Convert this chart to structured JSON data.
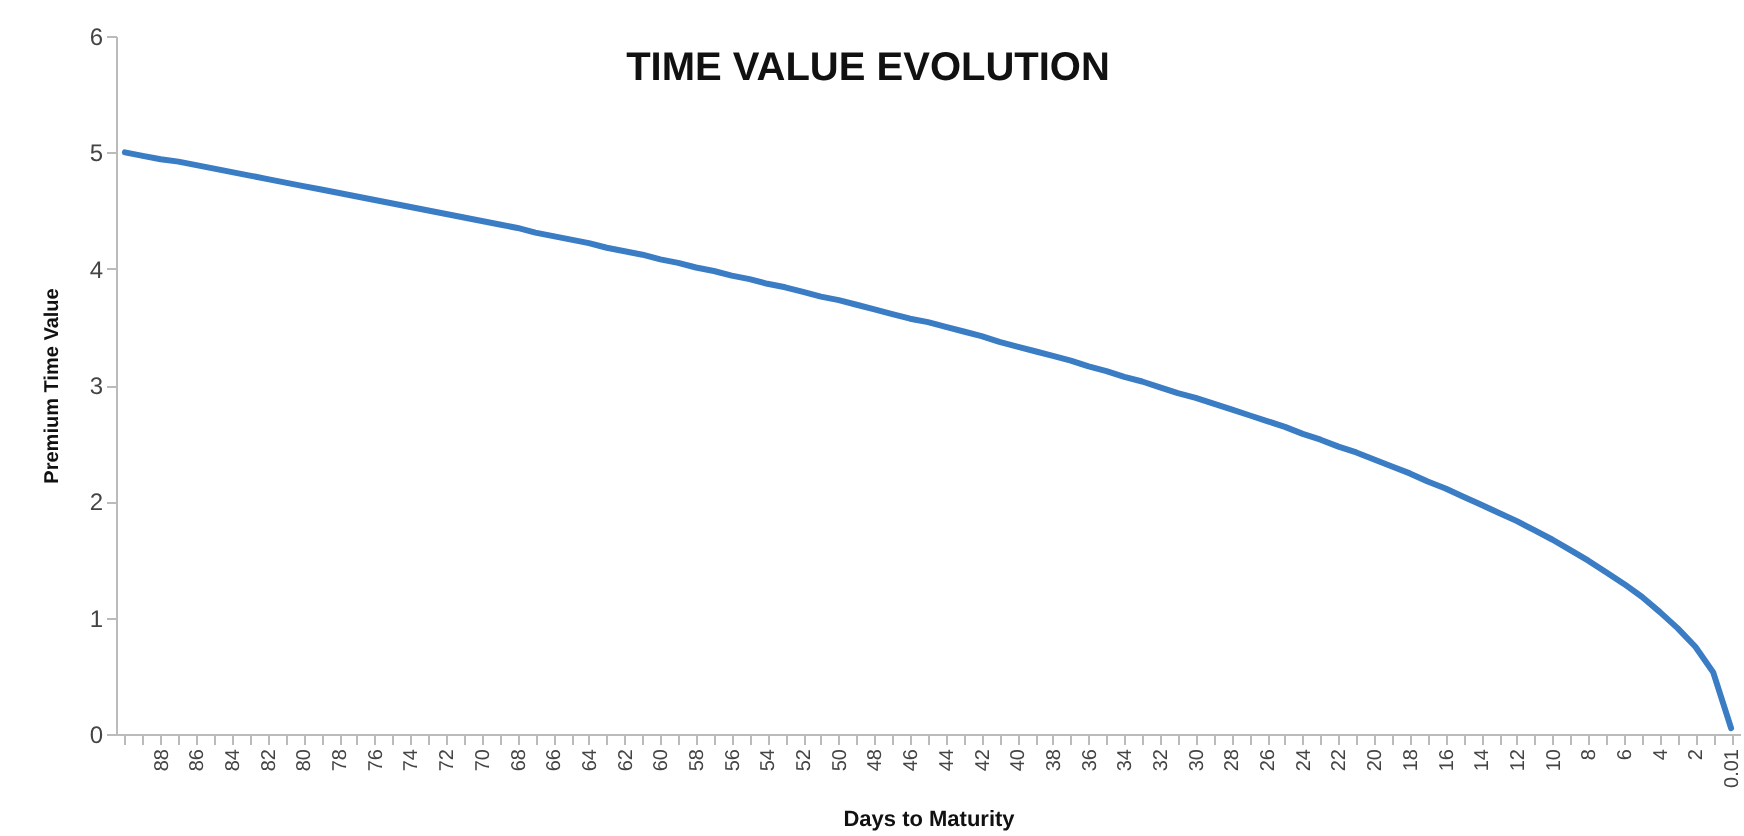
{
  "chart_data": {
    "type": "line",
    "title": "TIME VALUE EVOLUTION",
    "xlabel": "Days to Maturity",
    "ylabel": "Premium Time Value",
    "categories": [
      null,
      null,
      "88",
      null,
      "86",
      null,
      "84",
      null,
      "82",
      null,
      "80",
      null,
      "78",
      null,
      "76",
      null,
      "74",
      null,
      "72",
      null,
      "70",
      null,
      "68",
      null,
      "66",
      null,
      "64",
      null,
      "62",
      null,
      "60",
      null,
      "58",
      null,
      "56",
      null,
      "54",
      null,
      "52",
      null,
      "50",
      null,
      "48",
      null,
      "46",
      null,
      "44",
      null,
      "42",
      null,
      "40",
      null,
      "38",
      null,
      "36",
      null,
      "34",
      null,
      "32",
      null,
      "30",
      null,
      "28",
      null,
      "26",
      null,
      "24",
      null,
      "22",
      null,
      "20",
      null,
      "18",
      null,
      "16",
      null,
      "14",
      null,
      "12",
      null,
      "10",
      null,
      "8",
      null,
      "6",
      null,
      "4",
      null,
      "2",
      null,
      "0.01"
    ],
    "series": [
      {
        "color": "#3b7dc4",
        "values": [
          5.0,
          4.97,
          4.94,
          4.92,
          4.89,
          4.86,
          4.83,
          4.8,
          4.77,
          4.74,
          4.71,
          4.68,
          4.65,
          4.62,
          4.59,
          4.56,
          4.53,
          4.5,
          4.47,
          4.44,
          4.41,
          4.38,
          4.35,
          4.31,
          4.28,
          4.25,
          4.22,
          4.18,
          4.15,
          4.12,
          4.08,
          4.05,
          4.01,
          3.98,
          3.94,
          3.91,
          3.87,
          3.84,
          3.8,
          3.76,
          3.73,
          3.69,
          3.65,
          3.61,
          3.57,
          3.54,
          3.5,
          3.46,
          3.42,
          3.37,
          3.33,
          3.29,
          3.25,
          3.21,
          3.16,
          3.12,
          3.07,
          3.03,
          2.98,
          2.93,
          2.89,
          2.84,
          2.79,
          2.74,
          2.69,
          2.64,
          2.58,
          2.53,
          2.47,
          2.42,
          2.36,
          2.3,
          2.24,
          2.17,
          2.11,
          2.04,
          1.97,
          1.9,
          1.83,
          1.75,
          1.67,
          1.58,
          1.49,
          1.39,
          1.29,
          1.18,
          1.05,
          0.91,
          0.75,
          0.53,
          0.05
        ]
      }
    ],
    "ylim": [
      0,
      6
    ],
    "yticks": [
      0,
      1,
      2,
      3,
      4,
      5,
      6
    ],
    "grid": false,
    "marker": "none",
    "line_style": "solid"
  }
}
